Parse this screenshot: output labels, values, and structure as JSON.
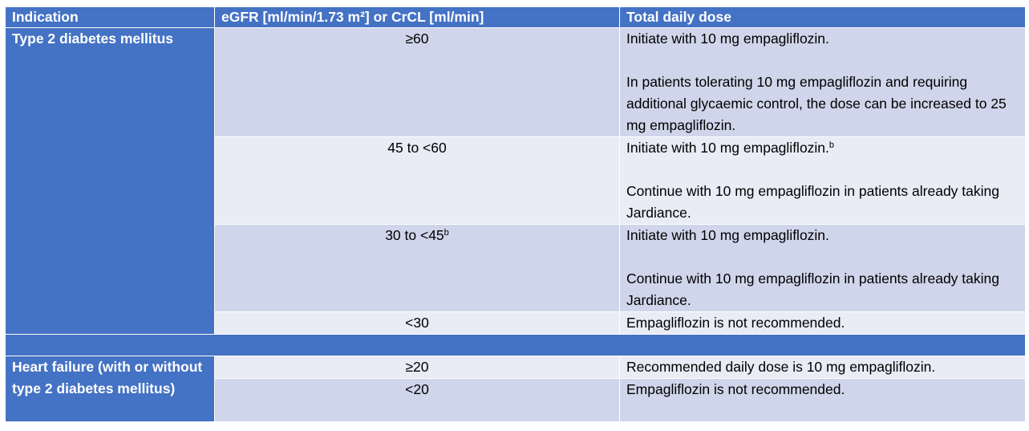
{
  "table": {
    "header": [
      "Indication",
      "eGFR [ml/min/1.73 m²] or CrCL [ml/min]",
      "Total daily dose"
    ],
    "groups": [
      {
        "indication": "Type 2 diabetes mellitus",
        "rows": [
          {
            "egfr": "≥60",
            "dose": [
              {
                "text": "Initiate with 10 mg empagliflozin."
              },
              {
                "text": "In patients tolerating 10 mg empagliflozin and requiring additional glycaemic control, the dose can be increased to 25 mg empagliflozin."
              }
            ]
          },
          {
            "egfr": "45 to <60",
            "dose": [
              {
                "text": "Initiate with 10 mg empagliflozin.",
                "sup": "b"
              },
              {
                "text": "Continue with 10 mg empagliflozin in patients already taking Jardiance."
              }
            ]
          },
          {
            "egfr": "30 to <45",
            "egfr_sup": "b",
            "dose": [
              {
                "text": "Initiate with 10 mg empagliflozin."
              },
              {
                "text": "Continue with 10 mg empagliflozin in patients already taking Jardiance."
              }
            ]
          },
          {
            "egfr": "<30",
            "dose": [
              {
                "text": "Empagliflozin is not recommended."
              }
            ]
          }
        ]
      },
      {
        "indication": "Heart failure (with or without type 2 diabetes mellitus)",
        "rows": [
          {
            "egfr": "≥20",
            "dose": [
              {
                "text": "Recommended daily dose is 10 mg empagliflozin."
              }
            ]
          },
          {
            "egfr": "<20",
            "dose": [
              {
                "text": "Empagliflozin is not recommended."
              }
            ]
          }
        ]
      }
    ]
  }
}
